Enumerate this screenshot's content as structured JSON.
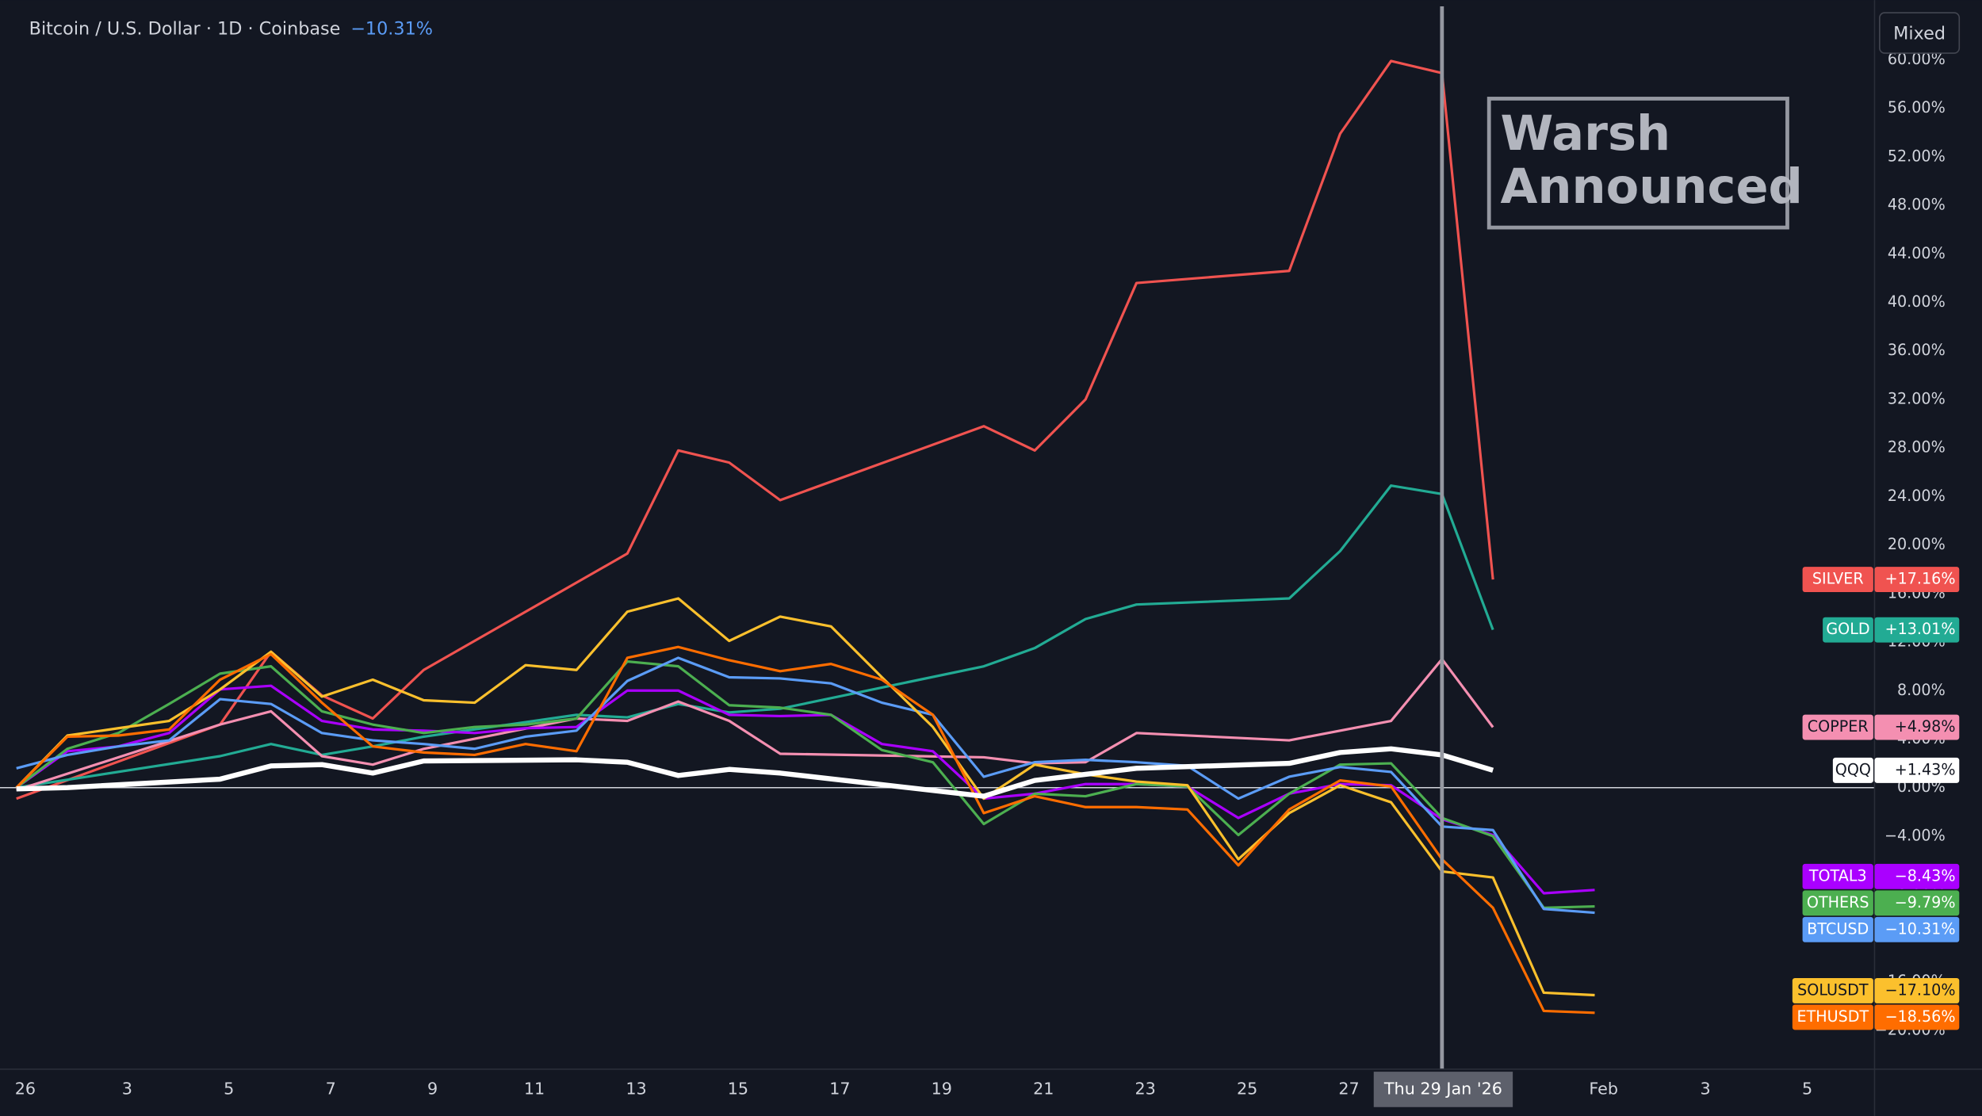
{
  "chart_data": {
    "type": "line",
    "title": "Bitcoin / U.S. Dollar · 1D · Coinbase",
    "title_change": "−10.31%",
    "button": "Mixed",
    "annotation": [
      "Warsh",
      "Announced"
    ],
    "crosshair": {
      "x": "2026-01-29",
      "label": "Thu 29 Jan '26"
    },
    "xlim": [
      "2026-01-01",
      "2026-02-06"
    ],
    "ylim": [
      -23.1,
      64.4
    ],
    "xticks": [
      {
        "value": "2026-01-01",
        "label": "26"
      },
      {
        "value": "2026-01-03",
        "label": "3"
      },
      {
        "value": "2026-01-05",
        "label": "5"
      },
      {
        "value": "2026-01-07",
        "label": "7"
      },
      {
        "value": "2026-01-09",
        "label": "9"
      },
      {
        "value": "2026-01-11",
        "label": "11"
      },
      {
        "value": "2026-01-13",
        "label": "13"
      },
      {
        "value": "2026-01-15",
        "label": "15"
      },
      {
        "value": "2026-01-17",
        "label": "17"
      },
      {
        "value": "2026-01-19",
        "label": "19"
      },
      {
        "value": "2026-01-21",
        "label": "21"
      },
      {
        "value": "2026-01-23",
        "label": "23"
      },
      {
        "value": "2026-01-25",
        "label": "25"
      },
      {
        "value": "2026-01-27",
        "label": "27"
      },
      {
        "value": "2026-02-01",
        "label": "Feb"
      },
      {
        "value": "2026-02-03",
        "label": "3"
      },
      {
        "value": "2026-02-05",
        "label": "5"
      }
    ],
    "yticks": [
      {
        "value": -20,
        "label": "−20.00%"
      },
      {
        "value": -16,
        "label": "−16.00%"
      },
      {
        "value": -12,
        "label": "−12.00%"
      },
      {
        "value": -8,
        "label": "−8.00%"
      },
      {
        "value": -4,
        "label": "−4.00%"
      },
      {
        "value": 0,
        "label": "0.00%"
      },
      {
        "value": 4,
        "label": "4.00%"
      },
      {
        "value": 8,
        "label": "8.00%"
      },
      {
        "value": 12,
        "label": "12.00%"
      },
      {
        "value": 16,
        "label": "16.00%"
      },
      {
        "value": 20,
        "label": "20.00%"
      },
      {
        "value": 24,
        "label": "24.00%"
      },
      {
        "value": 28,
        "label": "28.00%"
      },
      {
        "value": 32,
        "label": "32.00%"
      },
      {
        "value": 36,
        "label": "36.00%"
      },
      {
        "value": 40,
        "label": "40.00%"
      },
      {
        "value": 44,
        "label": "44.00%"
      },
      {
        "value": 48,
        "label": "48.00%"
      },
      {
        "value": 52,
        "label": "52.00%"
      },
      {
        "value": 56,
        "label": "56.00%"
      },
      {
        "value": 60,
        "label": "60.00%"
      }
    ],
    "x": [
      "2026-01-01",
      "2026-01-02",
      "2026-01-03",
      "2026-01-04",
      "2026-01-05",
      "2026-01-06",
      "2026-01-07",
      "2026-01-08",
      "2026-01-09",
      "2026-01-10",
      "2026-01-11",
      "2026-01-12",
      "2026-01-13",
      "2026-01-14",
      "2026-01-15",
      "2026-01-16",
      "2026-01-17",
      "2026-01-18",
      "2026-01-19",
      "2026-01-20",
      "2026-01-21",
      "2026-01-22",
      "2026-01-23",
      "2026-01-24",
      "2026-01-25",
      "2026-01-26",
      "2026-01-27",
      "2026-01-28",
      "2026-01-29",
      "2026-01-30",
      "2026-01-31",
      "2026-02-01"
    ],
    "series": [
      {
        "name": "SILVER",
        "color": "#f05350",
        "end_label": "+17.16%",
        "x": [
          "2026-01-01",
          "2026-01-05",
          "2026-01-06",
          "2026-01-07",
          "2026-01-08",
          "2026-01-09",
          "2026-01-13",
          "2026-01-14",
          "2026-01-15",
          "2026-01-16",
          "2026-01-20",
          "2026-01-21",
          "2026-01-22",
          "2026-01-23",
          "2026-01-26",
          "2026-01-27",
          "2026-01-28",
          "2026-01-29",
          "2026-01-30"
        ],
        "values": [
          -0.9,
          5.2,
          11.2,
          7.6,
          5.7,
          9.7,
          19.3,
          27.8,
          26.8,
          23.7,
          29.8,
          27.8,
          32.0,
          41.6,
          42.6,
          53.9,
          59.9,
          58.9,
          17.16
        ]
      },
      {
        "name": "GOLD",
        "color": "#22ab94",
        "end_label": "+13.01%",
        "x": [
          "2026-01-01",
          "2026-01-05",
          "2026-01-06",
          "2026-01-07",
          "2026-01-08",
          "2026-01-09",
          "2026-01-12",
          "2026-01-13",
          "2026-01-14",
          "2026-01-15",
          "2026-01-16",
          "2026-01-20",
          "2026-01-21",
          "2026-01-22",
          "2026-01-23",
          "2026-01-26",
          "2026-01-27",
          "2026-01-28",
          "2026-01-29",
          "2026-01-30"
        ],
        "values": [
          0,
          2.6,
          3.6,
          2.7,
          3.4,
          4.2,
          6.0,
          5.8,
          6.9,
          6.2,
          6.5,
          10.0,
          11.5,
          13.9,
          15.1,
          15.6,
          19.5,
          24.9,
          24.2,
          13.01
        ]
      },
      {
        "name": "COPPER",
        "color": "#f48fb1",
        "end_label": "+4.98%",
        "x": [
          "2026-01-01",
          "2026-01-05",
          "2026-01-06",
          "2026-01-07",
          "2026-01-08",
          "2026-01-09",
          "2026-01-12",
          "2026-01-13",
          "2026-01-14",
          "2026-01-15",
          "2026-01-16",
          "2026-01-20",
          "2026-01-21",
          "2026-01-22",
          "2026-01-23",
          "2026-01-26",
          "2026-01-28",
          "2026-01-29",
          "2026-01-30"
        ],
        "values": [
          -0.2,
          5.2,
          6.3,
          2.6,
          1.9,
          3.2,
          5.7,
          5.5,
          7.1,
          5.5,
          2.8,
          2.5,
          2.0,
          2.1,
          4.5,
          3.9,
          5.5,
          10.6,
          4.98
        ]
      },
      {
        "name": "TOTAL3",
        "color": "#aa00ff",
        "end_label": "−8.43%",
        "values": [
          0,
          3.0,
          3.4,
          4.5,
          8.1,
          8.4,
          5.5,
          4.8,
          4.7,
          4.5,
          4.9,
          5.0,
          8.0,
          8.0,
          6.0,
          5.9,
          6.0,
          3.6,
          3.0,
          -0.9,
          -0.5,
          0.3,
          0.3,
          0.1,
          -2.5,
          -0.5,
          0.3,
          0.2,
          -2.6,
          -3.9,
          -8.7,
          -8.43
        ]
      },
      {
        "name": "OTHERS",
        "color": "#4caf50",
        "end_label": "−9.79%",
        "values": [
          0,
          3.2,
          4.5,
          6.9,
          9.4,
          10.0,
          6.3,
          5.2,
          4.5,
          5.0,
          5.2,
          5.7,
          10.4,
          10.0,
          6.8,
          6.6,
          6.0,
          3.1,
          2.1,
          -3.0,
          -0.5,
          -0.7,
          0.3,
          0.1,
          -3.9,
          -0.5,
          1.9,
          2.0,
          -2.5,
          -4.0,
          -9.9,
          -9.79
        ]
      },
      {
        "name": "BTCUSD",
        "color": "#5b9cf6",
        "end_label": "−10.31%",
        "values": [
          1.6,
          2.7,
          3.4,
          3.9,
          7.3,
          6.9,
          4.5,
          3.9,
          3.6,
          3.2,
          4.2,
          4.7,
          8.8,
          10.7,
          9.1,
          9.0,
          8.6,
          7.0,
          6.0,
          0.9,
          2.1,
          2.3,
          2.1,
          1.8,
          -0.9,
          0.9,
          1.7,
          1.3,
          -3.2,
          -3.5,
          -10.0,
          -10.31
        ]
      },
      {
        "name": "SOLUSDT",
        "color": "#fbc02d",
        "end_label": "−17.10%",
        "values": [
          0,
          4.3,
          4.9,
          5.5,
          8.1,
          11.2,
          7.5,
          8.9,
          7.2,
          7.0,
          10.1,
          9.7,
          14.5,
          15.6,
          12.1,
          14.1,
          13.3,
          9.1,
          5.0,
          -0.9,
          1.9,
          1.1,
          0.5,
          0.2,
          -5.9,
          -2.1,
          0.2,
          -1.2,
          -6.9,
          -7.4,
          -16.9,
          -17.1
        ]
      },
      {
        "name": "ETHUSDT",
        "color": "#ff6d00",
        "end_label": "−18.56%",
        "values": [
          0,
          4.2,
          4.3,
          4.8,
          8.9,
          11.0,
          7.0,
          3.4,
          2.9,
          2.7,
          3.6,
          3.0,
          10.7,
          11.6,
          10.5,
          9.6,
          10.2,
          8.9,
          6.0,
          -2.1,
          -0.7,
          -1.6,
          -1.6,
          -1.8,
          -6.4,
          -1.8,
          0.6,
          0.1,
          -5.9,
          -9.9,
          -18.4,
          -18.56
        ]
      },
      {
        "name": "QQQ",
        "color": "#ffffff",
        "end_label": "+1.43%",
        "width": 4,
        "x": [
          "2026-01-01",
          "2026-01-02",
          "2026-01-05",
          "2026-01-06",
          "2026-01-07",
          "2026-01-08",
          "2026-01-09",
          "2026-01-12",
          "2026-01-13",
          "2026-01-14",
          "2026-01-15",
          "2026-01-16",
          "2026-01-20",
          "2026-01-21",
          "2026-01-22",
          "2026-01-23",
          "2026-01-26",
          "2026-01-27",
          "2026-01-28",
          "2026-01-29",
          "2026-01-30"
        ],
        "values": [
          -0.1,
          0,
          0.7,
          1.8,
          1.9,
          1.2,
          2.2,
          2.3,
          2.1,
          1.0,
          1.5,
          1.2,
          -0.7,
          0.6,
          1.1,
          1.6,
          2.0,
          2.9,
          3.2,
          2.7,
          1.43
        ]
      }
    ]
  }
}
